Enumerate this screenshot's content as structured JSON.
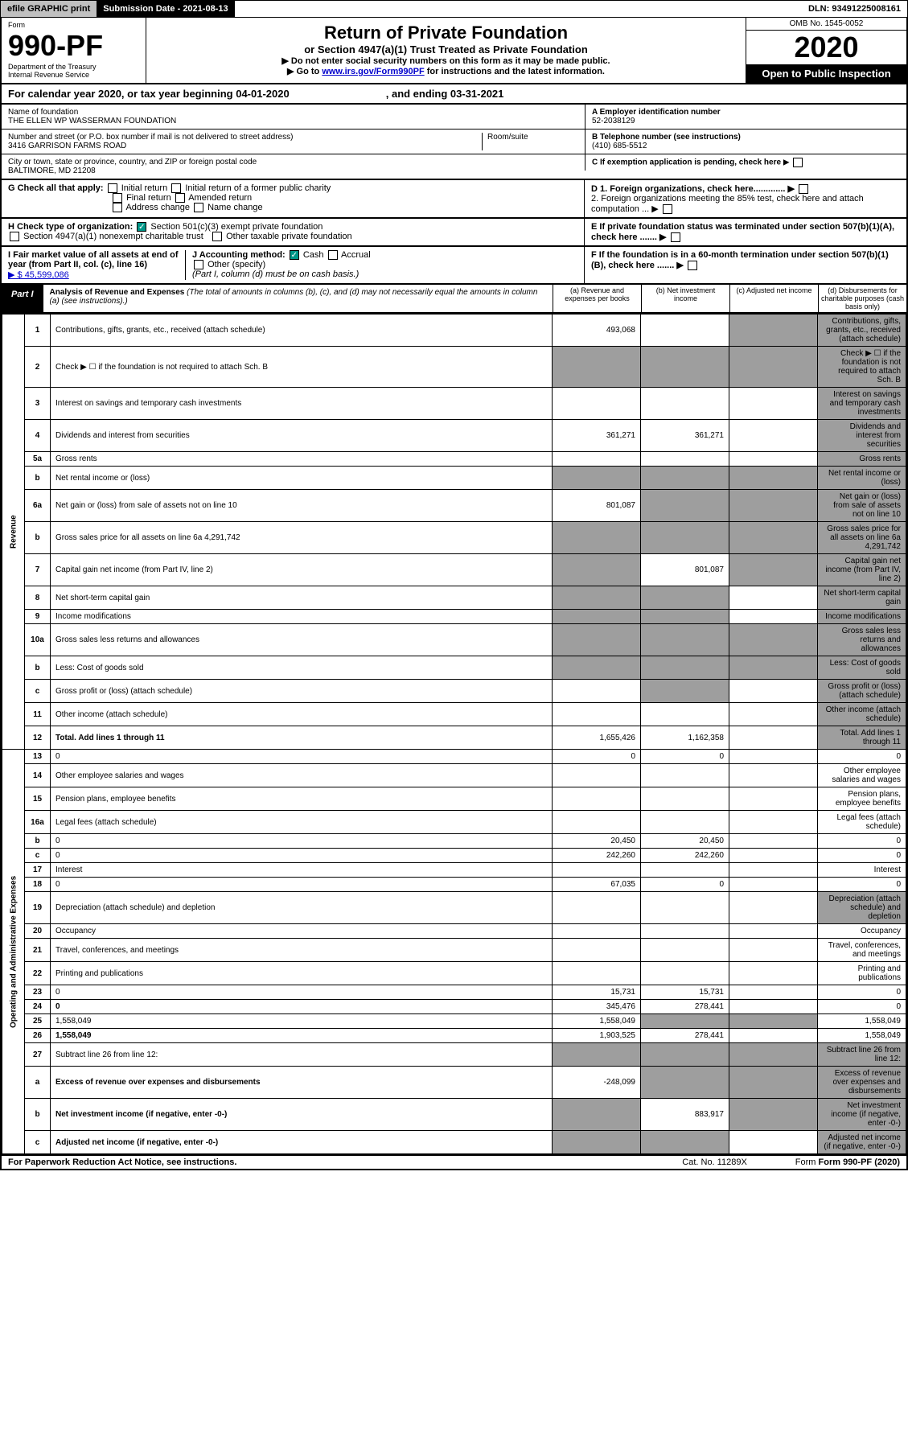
{
  "topbar": {
    "efile": "efile GRAPHIC print",
    "subdate": "Submission Date - 2021-08-13",
    "dln": "DLN: 93491225008161"
  },
  "header": {
    "form_label": "Form",
    "form_num": "990-PF",
    "dept": "Department of the Treasury",
    "irs": "Internal Revenue Service",
    "title": "Return of Private Foundation",
    "subtitle": "or Section 4947(a)(1) Trust Treated as Private Foundation",
    "instr1": "▶ Do not enter social security numbers on this form as it may be made public.",
    "instr2_pre": "▶ Go to ",
    "instr2_link": "www.irs.gov/Form990PF",
    "instr2_post": " for instructions and the latest information.",
    "omb": "OMB No. 1545-0052",
    "year": "2020",
    "open": "Open to Public Inspection"
  },
  "calrow": {
    "pre": "For calendar year 2020, or tax year beginning 04-01-2020",
    "end": ", and ending 03-31-2021"
  },
  "info": {
    "name_lbl": "Name of foundation",
    "name": "THE ELLEN WP WASSERMAN FOUNDATION",
    "addr_lbl": "Number and street (or P.O. box number if mail is not delivered to street address)",
    "addr": "3416 GARRISON FARMS ROAD",
    "room_lbl": "Room/suite",
    "city_lbl": "City or town, state or province, country, and ZIP or foreign postal code",
    "city": "BALTIMORE, MD  21208",
    "ein_lbl": "A Employer identification number",
    "ein": "52-2038129",
    "phone_lbl": "B Telephone number (see instructions)",
    "phone": "(410) 685-5512",
    "c": "C If exemption application is pending, check here",
    "d1": "D 1. Foreign organizations, check here.............",
    "d2": "2. Foreign organizations meeting the 85% test, check here and attach computation ...",
    "e": "E If private foundation status was terminated under section 507(b)(1)(A), check here .......",
    "f": "F If the foundation is in a 60-month termination under section 507(b)(1)(B), check here ......."
  },
  "g": {
    "label": "G Check all that apply:",
    "opts": [
      "Initial return",
      "Initial return of a former public charity",
      "Final return",
      "Amended return",
      "Address change",
      "Name change"
    ]
  },
  "h": {
    "label": "H Check type of organization:",
    "opt1": "Section 501(c)(3) exempt private foundation",
    "opt2": "Section 4947(a)(1) nonexempt charitable trust",
    "opt3": "Other taxable private foundation"
  },
  "i": {
    "label": "I Fair market value of all assets at end of year (from Part II, col. (c), line 16)",
    "val": "▶ $  45,599,086"
  },
  "j": {
    "label": "J Accounting method:",
    "cash": "Cash",
    "accrual": "Accrual",
    "other": "Other (specify)",
    "note": "(Part I, column (d) must be on cash basis.)"
  },
  "part1": {
    "tab": "Part I",
    "title": "Analysis of Revenue and Expenses",
    "note": "(The total of amounts in columns (b), (c), and (d) may not necessarily equal the amounts in column (a) (see instructions).)",
    "col_a": "(a)   Revenue and expenses per books",
    "col_b": "(b)   Net investment income",
    "col_c": "(c)   Adjusted net income",
    "col_d": "(d)   Disbursements for charitable purposes (cash basis only)"
  },
  "side": {
    "rev": "Revenue",
    "exp": "Operating and Administrative Expenses"
  },
  "rows": [
    {
      "n": "1",
      "d": "Contributions, gifts, grants, etc., received (attach schedule)",
      "a": "493,068",
      "shade_c": true,
      "shade_d": true
    },
    {
      "n": "2",
      "d": "Check ▶ ☐ if the foundation is not required to attach Sch. B",
      "shade_a": true,
      "shade_b": true,
      "shade_c": true,
      "shade_d": true
    },
    {
      "n": "3",
      "d": "Interest on savings and temporary cash investments",
      "shade_d": true
    },
    {
      "n": "4",
      "d": "Dividends and interest from securities",
      "a": "361,271",
      "b": "361,271",
      "shade_d": true
    },
    {
      "n": "5a",
      "d": "Gross rents",
      "shade_d": true
    },
    {
      "n": "b",
      "d": "Net rental income or (loss)",
      "shade_a": true,
      "shade_b": true,
      "shade_c": true,
      "shade_d": true
    },
    {
      "n": "6a",
      "d": "Net gain or (loss) from sale of assets not on line 10",
      "a": "801,087",
      "shade_b": true,
      "shade_c": true,
      "shade_d": true
    },
    {
      "n": "b",
      "d": "Gross sales price for all assets on line 6a           4,291,742",
      "shade_a": true,
      "shade_b": true,
      "shade_c": true,
      "shade_d": true
    },
    {
      "n": "7",
      "d": "Capital gain net income (from Part IV, line 2)",
      "shade_a": true,
      "b": "801,087",
      "shade_c": true,
      "shade_d": true
    },
    {
      "n": "8",
      "d": "Net short-term capital gain",
      "shade_a": true,
      "shade_b": true,
      "shade_d": true
    },
    {
      "n": "9",
      "d": "Income modifications",
      "shade_a": true,
      "shade_b": true,
      "shade_d": true
    },
    {
      "n": "10a",
      "d": "Gross sales less returns and allowances",
      "shade_a": true,
      "shade_b": true,
      "shade_c": true,
      "shade_d": true
    },
    {
      "n": "b",
      "d": "Less: Cost of goods sold",
      "shade_a": true,
      "shade_b": true,
      "shade_c": true,
      "shade_d": true
    },
    {
      "n": "c",
      "d": "Gross profit or (loss) (attach schedule)",
      "shade_b": true,
      "shade_d": true
    },
    {
      "n": "11",
      "d": "Other income (attach schedule)",
      "shade_d": true
    },
    {
      "n": "12",
      "d": "Total. Add lines 1 through 11",
      "bold": true,
      "a": "1,655,426",
      "b": "1,162,358",
      "shade_d": true
    },
    {
      "n": "13",
      "d": "0",
      "a": "0",
      "b": "0"
    },
    {
      "n": "14",
      "d": "Other employee salaries and wages"
    },
    {
      "n": "15",
      "d": "Pension plans, employee benefits"
    },
    {
      "n": "16a",
      "d": "Legal fees (attach schedule)"
    },
    {
      "n": "b",
      "d": "0",
      "a": "20,450",
      "b": "20,450"
    },
    {
      "n": "c",
      "d": "0",
      "a": "242,260",
      "b": "242,260"
    },
    {
      "n": "17",
      "d": "Interest"
    },
    {
      "n": "18",
      "d": "0",
      "a": "67,035",
      "b": "0"
    },
    {
      "n": "19",
      "d": "Depreciation (attach schedule) and depletion",
      "shade_d": true
    },
    {
      "n": "20",
      "d": "Occupancy"
    },
    {
      "n": "21",
      "d": "Travel, conferences, and meetings"
    },
    {
      "n": "22",
      "d": "Printing and publications"
    },
    {
      "n": "23",
      "d": "0",
      "a": "15,731",
      "b": "15,731"
    },
    {
      "n": "24",
      "d": "0",
      "bold": true,
      "a": "345,476",
      "b": "278,441"
    },
    {
      "n": "25",
      "d": "1,558,049",
      "a": "1,558,049",
      "shade_b": true,
      "shade_c": true
    },
    {
      "n": "26",
      "d": "1,558,049",
      "bold": true,
      "a": "1,903,525",
      "b": "278,441"
    },
    {
      "n": "27",
      "d": "Subtract line 26 from line 12:",
      "shade_a": true,
      "shade_b": true,
      "shade_c": true,
      "shade_d": true
    },
    {
      "n": "a",
      "d": "Excess of revenue over expenses and disbursements",
      "bold": true,
      "a": "-248,099",
      "shade_b": true,
      "shade_c": true,
      "shade_d": true
    },
    {
      "n": "b",
      "d": "Net investment income (if negative, enter -0-)",
      "bold": true,
      "shade_a": true,
      "b": "883,917",
      "shade_c": true,
      "shade_d": true
    },
    {
      "n": "c",
      "d": "Adjusted net income (if negative, enter -0-)",
      "bold": true,
      "shade_a": true,
      "shade_b": true,
      "shade_d": true
    }
  ],
  "footer": {
    "left": "For Paperwork Reduction Act Notice, see instructions.",
    "cat": "Cat. No. 11289X",
    "form": "Form 990-PF (2020)"
  }
}
